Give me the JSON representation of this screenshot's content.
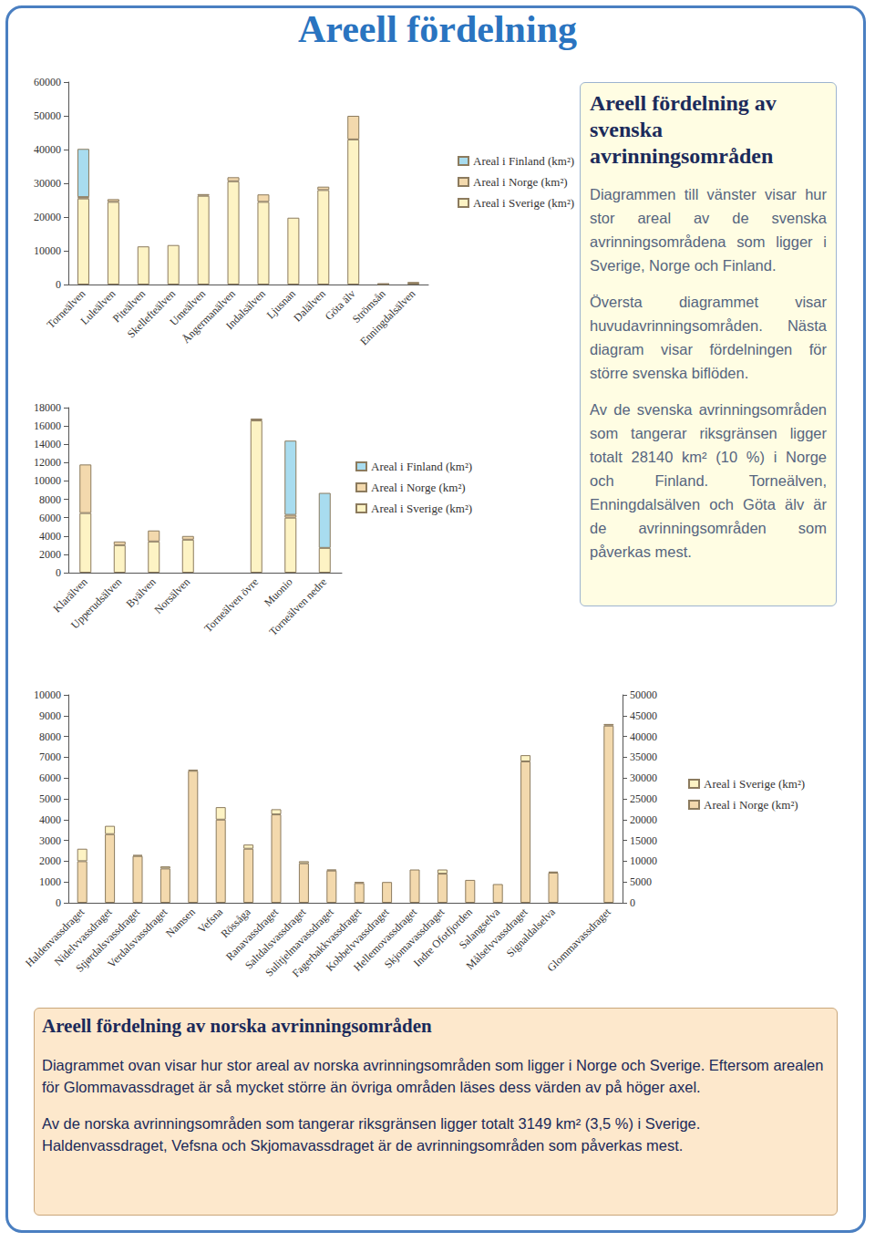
{
  "title": "Areell fördelning",
  "chart_data": [
    {
      "type": "bar",
      "stacked": true,
      "grid": false,
      "legend": "right",
      "categories": [
        "Torneälven",
        "Luleälven",
        "Piteälven",
        "Skellefteälven",
        "Umeälven",
        "Ångermanälven",
        "Indalsälven",
        "Ljusnan",
        "Dalälven",
        "Göta älv",
        "Strömsån",
        "Enningdalsälven"
      ],
      "series": [
        {
          "name": "Areal i Finland (km²)",
          "color": "#a8dcef",
          "values": [
            14300,
            null,
            null,
            null,
            null,
            null,
            null,
            null,
            null,
            null,
            null,
            null
          ]
        },
        {
          "name": "Areal i Norge (km²)",
          "color": "#f3d9ad",
          "values": [
            400,
            800,
            null,
            null,
            500,
            1200,
            2200,
            null,
            1000,
            7000,
            100,
            500
          ]
        },
        {
          "name": "Areal i Sverige (km²)",
          "color": "#fdf3c4",
          "values": [
            25500,
            24500,
            11300,
            11700,
            26300,
            30600,
            24500,
            19800,
            28000,
            43000,
            150,
            250
          ]
        }
      ],
      "ylim": [
        0,
        60000
      ],
      "yticks": [
        0,
        10000,
        20000,
        30000,
        40000,
        50000,
        60000
      ]
    },
    {
      "type": "bar",
      "stacked": true,
      "grid": false,
      "legend": "right",
      "categories": [
        "Klarälven",
        "Upperudsälven",
        "Byälven",
        "Norsälven",
        null,
        "Torneälven övre",
        "Muonio",
        "Torneälven nedre"
      ],
      "series": [
        {
          "name": "Areal i Finland (km²)",
          "color": "#a8dcef",
          "values": [
            null,
            null,
            null,
            null,
            null,
            null,
            8100,
            6000
          ]
        },
        {
          "name": "Areal i Norge (km²)",
          "color": "#f3d9ad",
          "values": [
            5300,
            400,
            1200,
            400,
            null,
            200,
            300,
            null
          ]
        },
        {
          "name": "Areal i Sverige (km²)",
          "color": "#fdf3c4",
          "values": [
            6500,
            3000,
            3400,
            3600,
            null,
            16600,
            6000,
            2700
          ]
        }
      ],
      "ylim": [
        0,
        18000
      ],
      "yticks": [
        0,
        2000,
        4000,
        6000,
        8000,
        10000,
        12000,
        14000,
        16000,
        18000
      ]
    },
    {
      "type": "bar",
      "stacked": true,
      "grid": false,
      "legend": "right",
      "categories": [
        "Haldenvassdraget",
        "Nidelvvassdraget",
        "Stjørdalsvassdraget",
        "Verdalsvassdraget",
        "Namsen",
        "Vefsna",
        "Rössåga",
        "Ranavassdraget",
        "Saltdalsvassdraget",
        "Sulitjelmavassdraget",
        "Fagerbakkvassdraget",
        "Kobbelvvassdraget",
        "Hellemovassdraget",
        "Skjomavassdraget",
        "Indre Ofotfjorden",
        "Salangselva",
        "Målselvvassdraget",
        "Signaldalselva",
        null,
        "Glommavassdraget"
      ],
      "series": [
        {
          "name": "Areal i Sverige (km²)",
          "color": "#fdf3c4",
          "values": [
            600,
            400,
            50,
            100,
            50,
            600,
            200,
            250,
            100,
            50,
            50,
            null,
            null,
            200,
            null,
            null,
            300,
            50,
            null,
            null
          ]
        },
        {
          "name": "Areal i Norge (km²)",
          "color": "#f3d9ad",
          "values": [
            2000,
            3300,
            2250,
            1650,
            6350,
            4000,
            2600,
            4250,
            1900,
            1550,
            950,
            1000,
            1600,
            1400,
            1100,
            900,
            6800,
            1450,
            null,
            null
          ]
        },
        {
          "name": "Areal i Sverige (km²)",
          "color": "#fdf3c4",
          "axis": "y2",
          "values": [
            null,
            null,
            null,
            null,
            null,
            null,
            null,
            null,
            null,
            null,
            null,
            null,
            null,
            null,
            null,
            null,
            null,
            null,
            null,
            400
          ]
        },
        {
          "name": "Areal i Norge (km²)",
          "color": "#f3d9ad",
          "axis": "y2",
          "values": [
            null,
            null,
            null,
            null,
            null,
            null,
            null,
            null,
            null,
            null,
            null,
            null,
            null,
            null,
            null,
            null,
            null,
            null,
            null,
            42600
          ]
        }
      ],
      "ylim": [
        0,
        10000
      ],
      "yticks": [
        0,
        1000,
        2000,
        3000,
        4000,
        5000,
        6000,
        7000,
        8000,
        9000,
        10000
      ],
      "y2lim": [
        0,
        50000
      ],
      "y2ticks": [
        0,
        5000,
        10000,
        15000,
        20000,
        25000,
        30000,
        35000,
        40000,
        45000,
        50000
      ]
    }
  ],
  "swedish_box": {
    "title": "Areell fördelning av svenska avrinningsområden",
    "paragraphs": [
      "Diagrammen till vänster visar hur stor areal av de svenska avrinningsområdena som ligger i Sverige, Norge och Finland.",
      "Översta diagrammet visar huvudavrinningsområden. Nästa diagram visar fördelningen för större svenska biflöden.",
      "Av de svenska avrinningsområden som tangerar riksgränsen ligger totalt 28140 km² (10 %) i Norge och Finland. Torneälven, Enningdalsälven och Göta älv är de avrinningsområden som påverkas mest."
    ]
  },
  "norwegian_box": {
    "title": "Areell fördelning av norska avrinningsområden",
    "paragraphs": [
      "Diagrammet ovan visar hur stor areal av norska avrinningsområden som ligger i Norge och Sverige. Eftersom arealen för Glommavassdraget är så mycket större än övriga områden läses dess värden av på höger axel.",
      "Av de norska avrinningsområden som tangerar riksgränsen ligger totalt 3149 km² (3,5 %) i Sverige. Haldenvassdraget, Vefsna och Skjomavassdraget är de avrinningsområden som påverkas mest."
    ]
  }
}
